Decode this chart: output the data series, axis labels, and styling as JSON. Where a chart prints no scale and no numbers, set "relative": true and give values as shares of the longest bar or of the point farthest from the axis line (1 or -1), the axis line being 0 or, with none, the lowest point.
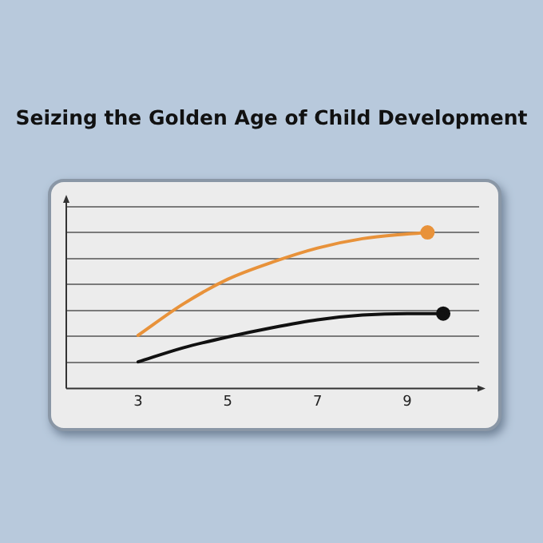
{
  "chart_data": {
    "type": "line",
    "title": "Seizing the Golden Age of Child Development",
    "relative": true,
    "xlim": [
      1.4,
      10.6
    ],
    "xticks": [
      3,
      5,
      7,
      9
    ],
    "tick_labels": "x",
    "grid": "y",
    "legend": false,
    "line_style": "solid",
    "series": [
      {
        "color": "#e8923a",
        "x": [
          3,
          4,
          5,
          6,
          7,
          8,
          9,
          9.45
        ],
        "values": [
          0.34,
          0.54,
          0.7,
          0.81,
          0.9,
          0.96,
          0.99,
          1
        ]
      },
      {
        "color": "#111111",
        "x": [
          3,
          4,
          5,
          6,
          7,
          8,
          9,
          9.8
        ],
        "values": [
          0.17,
          0.26,
          0.33,
          0.39,
          0.44,
          0.47,
          0.48,
          0.48
        ]
      },
      {
        "type": "scatter",
        "marker": "circle",
        "color": "#e8923a",
        "x": [
          9.45
        ],
        "values": [
          1
        ]
      },
      {
        "type": "scatter",
        "marker": "circle",
        "color": "#111111",
        "x": [
          9.8
        ],
        "values": [
          0.48
        ]
      }
    ]
  }
}
